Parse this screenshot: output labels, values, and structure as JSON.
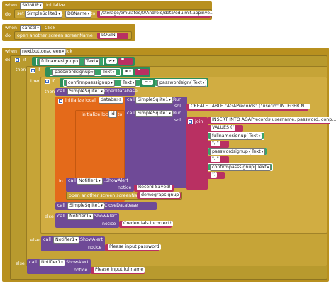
{
  "kw": {
    "when": "when",
    "do": "do",
    "if": "if",
    "then": "then",
    "else": "else",
    "call": "call",
    "set": "set",
    "to": "to",
    "notice": "notice",
    "sql": "sql",
    "join": "join"
  },
  "ev1": {
    "component": "SIGNUP",
    "event": "Initialize",
    "set_component": "SimpleSqlite1",
    "property": "DBName",
    "value": "/storage/emulated/0/Android/data/edu.mit.appinve..."
  },
  "ev2": {
    "component": "cancel",
    "event": "Click",
    "action": "open another screen  screenName",
    "value": "LOGIN"
  },
  "ev3": {
    "component": "nextbuttonscreen",
    "event": "Click"
  },
  "cond1": {
    "component": "fullnamesignup",
    "prop": "Text",
    "op": "≠",
    "str": " "
  },
  "cond2": {
    "component": "passwordsignup",
    "prop": "Text",
    "op": "≠",
    "str": " "
  },
  "cond3": {
    "component": "confirmpasssignup",
    "prop": "Text",
    "op": "=",
    "comp2": "passwordsignup",
    "prop2": "Text"
  },
  "open_db": {
    "component": "SimpleSqlite1",
    "method": "OpenDatabase"
  },
  "local1": {
    "label": "initialize local",
    "name": "database",
    "to": "to",
    "component": "SimpleSqlite1",
    "method": "Run",
    "sql_text": "CREATE TABLE \"AGAPrecords\" (\"userid\" INTEGER N..."
  },
  "local2": {
    "label": "initialize local",
    "name": "id",
    "to": "to",
    "component": "SimpleSqlite1",
    "method": "Run"
  },
  "join": {
    "item1": "INSERT INTO AGAPrecords(username, password, conp...",
    "item2": "VALUES (\"",
    "comp1": "fullnamesignup",
    "prop1": "Text",
    "sep": "\", \"",
    "comp2": "passwordsignup",
    "prop2": "Text",
    "comp3": "confirmpasssignup",
    "prop3": "Text",
    "end": "\")"
  },
  "inner_in": "in",
  "alert1": {
    "component": "Notifier1",
    "method": "ShowAlert",
    "notice": "Record Saved!"
  },
  "open_screen": {
    "label": "open another screen  screenName",
    "value": "demograpsignup"
  },
  "close_db": {
    "component": "SimpleSqlite1",
    "method": "CloseDatabase"
  },
  "alert2": {
    "component": "Notifier1",
    "method": "ShowAlert",
    "notice": "Credentials incorrect!"
  },
  "alert3": {
    "component": "Notifier1",
    "method": "ShowAlert",
    "notice": "Please input password"
  },
  "alert4": {
    "component": "Notifier1",
    "method": "ShowAlert",
    "notice": "Please input fullname"
  }
}
